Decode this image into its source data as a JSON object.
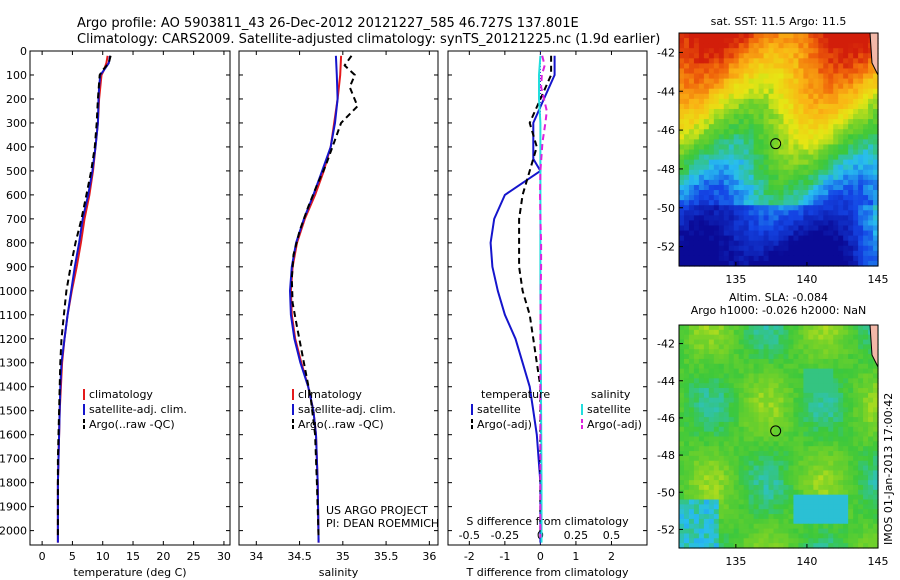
{
  "header": {
    "line1": "Argo profile: AO 5903811_43 26-Dec-2012 20121227_585 46.727S 137.801E",
    "line2": "Climatology: CARS2009. Satellite-adjusted climatology: synTS_20121225.nc (1.9d earlier)"
  },
  "colors": {
    "climatology": "#e41a1c",
    "satellite": "#1515cc",
    "argo": "#000000",
    "salinity_sat": "#22dddd",
    "salinity_argo": "#dd22dd"
  },
  "chart_data": [
    {
      "type": "line",
      "id": "temperature",
      "xlabel": "temperature (deg C)",
      "ylabel": "",
      "xlim": [
        -2,
        31
      ],
      "ylim": [
        2060,
        0
      ],
      "xticks": [
        0,
        5,
        10,
        15,
        20,
        25,
        30
      ],
      "yticks": [
        0,
        100,
        200,
        300,
        400,
        500,
        600,
        700,
        800,
        900,
        1000,
        1100,
        1200,
        1300,
        1400,
        1500,
        1600,
        1700,
        1800,
        1900,
        2000
      ],
      "legend": {
        "placement": "lower-center",
        "entries": [
          "climatology",
          "satellite-adj. clim.",
          "Argo(..raw -QC)"
        ]
      },
      "series": [
        {
          "name": "climatology",
          "style": "solid",
          "color": "#e41a1c",
          "x": [
            10.8,
            10.6,
            10.2,
            9.8,
            9.6,
            9.4,
            9.2,
            8.8,
            8.4,
            7.8,
            7.0,
            6.4,
            5.7,
            4.9,
            4.2,
            3.7,
            3.3,
            3.1,
            2.9,
            2.8,
            2.7,
            2.6,
            2.6
          ],
          "y": [
            20,
            50,
            80,
            100,
            150,
            200,
            300,
            400,
            500,
            600,
            700,
            800,
            900,
            1000,
            1100,
            1200,
            1300,
            1400,
            1500,
            1600,
            1700,
            1800,
            2050
          ]
        },
        {
          "name": "satellite-adj. clim.",
          "style": "solid",
          "color": "#1515cc",
          "x": [
            11.2,
            11.0,
            10.2,
            9.6,
            9.4,
            9.3,
            9.2,
            8.8,
            8.3,
            7.6,
            6.7,
            6.1,
            5.4,
            4.8,
            4.2,
            3.7,
            3.2,
            3.0,
            2.9,
            2.8,
            2.7,
            2.6,
            2.6
          ],
          "y": [
            20,
            50,
            80,
            100,
            150,
            200,
            300,
            400,
            500,
            600,
            700,
            800,
            900,
            1000,
            1100,
            1200,
            1300,
            1400,
            1500,
            1600,
            1700,
            1800,
            2050
          ]
        },
        {
          "name": "Argo(..raw -QC)",
          "style": "dashed",
          "color": "#000000",
          "x": [
            11.3,
            11.0,
            10.0,
            9.5,
            9.2,
            9.0,
            8.7,
            8.1,
            7.3,
            6.5,
            5.5,
            4.7,
            4.0,
            3.6,
            3.2,
            3.0,
            2.9,
            2.8,
            2.7,
            2.6,
            2.6
          ],
          "y": [
            20,
            50,
            80,
            100,
            200,
            300,
            400,
            500,
            600,
            700,
            800,
            900,
            1000,
            1100,
            1200,
            1300,
            1400,
            1500,
            1600,
            1700,
            2030
          ]
        }
      ]
    },
    {
      "type": "line",
      "id": "salinity",
      "xlabel": "salinity",
      "ylabel": "",
      "xlim": [
        33.8,
        36.1
      ],
      "ylim": [
        2060,
        0
      ],
      "xticks": [
        34,
        34.5,
        35,
        35.5,
        36
      ],
      "yticks": [
        0,
        100,
        200,
        300,
        400,
        500,
        600,
        700,
        800,
        900,
        1000,
        1100,
        1200,
        1300,
        1400,
        1500,
        1600,
        1700,
        1800,
        1900,
        2000
      ],
      "legend": {
        "placement": "lower-center",
        "entries": [
          "climatology",
          "satellite-adj. clim.",
          "Argo(..raw -QC)"
        ]
      },
      "annotation": [
        "US ARGO PROJECT",
        "PI: DEAN ROEMMICH"
      ],
      "series": [
        {
          "name": "climatology",
          "style": "solid",
          "color": "#e41a1c",
          "x": [
            34.98,
            34.97,
            34.94,
            34.9,
            34.86,
            34.78,
            34.68,
            34.56,
            34.47,
            34.42,
            34.4,
            34.41,
            34.45,
            34.52,
            34.6,
            34.66,
            34.69,
            34.71,
            34.72
          ],
          "y": [
            20,
            100,
            200,
            300,
            400,
            500,
            600,
            700,
            800,
            900,
            1000,
            1100,
            1200,
            1300,
            1400,
            1500,
            1600,
            1800,
            2050
          ]
        },
        {
          "name": "satellite-adj. clim.",
          "style": "solid",
          "color": "#1515cc",
          "x": [
            34.92,
            34.93,
            34.94,
            34.91,
            34.86,
            34.76,
            34.66,
            34.55,
            34.46,
            34.41,
            34.39,
            34.4,
            34.44,
            34.51,
            34.6,
            34.66,
            34.69,
            34.71,
            34.72
          ],
          "y": [
            20,
            100,
            200,
            300,
            400,
            500,
            600,
            700,
            800,
            900,
            1000,
            1100,
            1200,
            1300,
            1400,
            1500,
            1600,
            1800,
            2050
          ]
        },
        {
          "name": "Argo(..raw -QC)",
          "style": "dashed",
          "color": "#000000",
          "x": [
            35.1,
            35.02,
            35.14,
            35.08,
            35.17,
            34.98,
            34.9,
            34.8,
            34.7,
            34.6,
            34.5,
            34.43,
            34.41,
            34.42,
            34.47,
            34.55,
            34.63,
            34.68,
            34.7,
            34.72
          ],
          "y": [
            20,
            60,
            100,
            150,
            230,
            300,
            380,
            480,
            560,
            650,
            750,
            850,
            950,
            1050,
            1150,
            1300,
            1450,
            1600,
            1800,
            2030
          ]
        }
      ]
    },
    {
      "type": "line",
      "id": "difference",
      "xlabel": "T difference from climatology",
      "xlabel_top": "S difference from climatology",
      "xlim": [
        -2.6,
        3.0
      ],
      "ylim": [
        2060,
        0
      ],
      "xticks": [
        -2,
        -1,
        0,
        1,
        2
      ],
      "xticks_s": [
        "-0.5",
        "-0.25",
        "0",
        "0.25",
        "0.5"
      ],
      "yticks": [
        0,
        100,
        200,
        300,
        400,
        500,
        600,
        700,
        800,
        900,
        1000,
        1100,
        1200,
        1300,
        1400,
        1500,
        1600,
        1700,
        1800,
        1900,
        2000
      ],
      "legend": {
        "placement": "lower-center",
        "groups": [
          {
            "title": "temperature",
            "entries": [
              "satellite",
              "Argo(-adj)"
            ]
          },
          {
            "title": "salinity",
            "entries": [
              "satellite",
              "Argo(-adj)"
            ]
          }
        ]
      },
      "series": [
        {
          "name": "temperature satellite",
          "style": "solid",
          "color": "#1515cc",
          "x": [
            0.4,
            0.4,
            0.1,
            -0.2,
            -0.2,
            -0.2,
            0.0,
            -0.5,
            -1.0,
            -1.3,
            -1.4,
            -1.35,
            -1.2,
            -1.0,
            -0.7,
            -0.5,
            -0.3,
            -0.2,
            -0.1,
            0.0,
            0.0
          ],
          "y": [
            20,
            100,
            200,
            300,
            400,
            450,
            500,
            550,
            600,
            700,
            800,
            900,
            1000,
            1100,
            1200,
            1300,
            1400,
            1500,
            1600,
            1800,
            2050
          ]
        },
        {
          "name": "temperature Argo(-adj)",
          "style": "dashed",
          "color": "#000000",
          "x": [
            0.3,
            0.3,
            0.0,
            -0.3,
            -0.1,
            -0.3,
            -0.5,
            -0.6,
            -0.6,
            -0.6,
            -0.5,
            -0.3,
            -0.2,
            -0.1,
            0.0,
            0.0,
            0.0,
            0.0
          ],
          "y": [
            20,
            100,
            200,
            300,
            400,
            500,
            600,
            700,
            800,
            900,
            1000,
            1100,
            1200,
            1300,
            1400,
            1600,
            1800,
            2030
          ]
        },
        {
          "name": "salinity satellite",
          "style": "solid",
          "color": "#22dddd",
          "x": [
            0.0,
            -0.04,
            -0.04,
            0.0,
            0.0,
            0.0,
            0.0,
            0.0,
            0.02,
            0.03,
            0.03
          ],
          "y": [
            20,
            100,
            200,
            300,
            400,
            600,
            800,
            1000,
            1500,
            1800,
            2050
          ]
        },
        {
          "name": "salinity Argo(-adj)",
          "style": "dashed",
          "color": "#dd22dd",
          "x": [
            0.05,
            0.12,
            0.04,
            0.02,
            0.18,
            0.14,
            0.06,
            0.0,
            -0.01,
            0.0,
            0.02,
            0.02,
            0.01,
            0.0,
            0.0,
            0.0
          ],
          "y": [
            20,
            60,
            100,
            150,
            250,
            300,
            380,
            500,
            600,
            700,
            800,
            900,
            1000,
            1200,
            1500,
            2030
          ]
        }
      ]
    },
    {
      "type": "heatmap",
      "id": "sst-map",
      "title": "sat. SST: 11.5 Argo: 11.5",
      "xlim": [
        131,
        145
      ],
      "ylim": [
        -53,
        -41
      ],
      "xticks": [
        135,
        140,
        145
      ],
      "yticks": [
        -42,
        -44,
        -46,
        -48,
        -50,
        -52
      ],
      "marker": {
        "lon": 137.8,
        "lat": -46.7
      }
    },
    {
      "type": "heatmap",
      "id": "sla-map",
      "title_lines": [
        "Altim. SLA: -0.084",
        "Argo h1000: -0.026 h2000: NaN"
      ],
      "xlim": [
        131,
        145
      ],
      "ylim": [
        -53,
        -41
      ],
      "xticks": [
        135,
        140,
        145
      ],
      "yticks": [
        -42,
        -44,
        -46,
        -48,
        -50,
        -52
      ],
      "marker": {
        "lon": 137.8,
        "lat": -46.7
      }
    }
  ],
  "watermark": "IMOS 01-Jan-2013 17:00:42"
}
